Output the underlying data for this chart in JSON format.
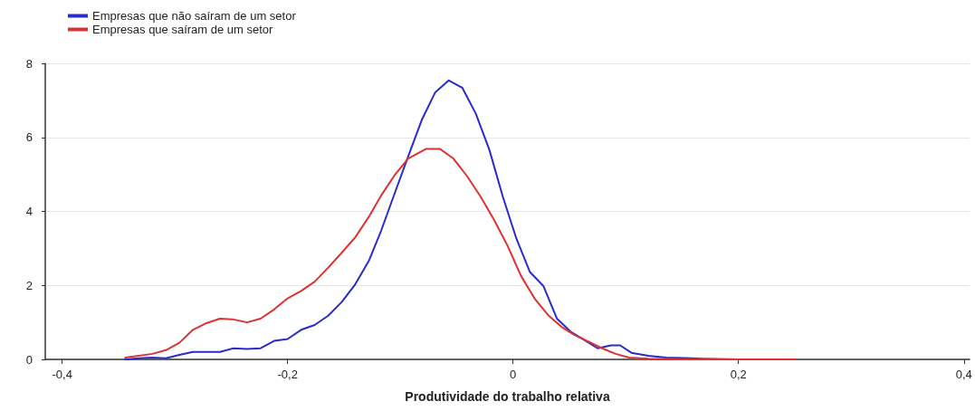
{
  "chart_data": {
    "type": "line",
    "xlabel": "Produtividade do trabalho relativa",
    "xlim": [
      -0.415,
      0.405
    ],
    "xticks": [
      {
        "value": -0.4,
        "label": "-0,4"
      },
      {
        "value": -0.2,
        "label": "-0,2"
      },
      {
        "value": 0,
        "label": "0"
      },
      {
        "value": 0.2,
        "label": "0,2"
      },
      {
        "value": 0.4,
        "label": "0,4"
      }
    ],
    "ylim": [
      0,
      8
    ],
    "yticks": [
      0,
      2,
      4,
      6,
      8
    ],
    "grid": "y",
    "legend": "top left",
    "marker": "none",
    "line_style": "solid",
    "series": [
      {
        "name": "Empresas que não saíram de um setor",
        "color": "#2b2bcc",
        "x": [
          -0.344,
          -0.332,
          -0.32,
          -0.308,
          -0.296,
          -0.284,
          -0.272,
          -0.26,
          -0.248,
          -0.236,
          -0.224,
          -0.212,
          -0.2,
          -0.188,
          -0.176,
          -0.164,
          -0.152,
          -0.14,
          -0.128,
          -0.117,
          -0.105,
          -0.093,
          -0.081,
          -0.069,
          -0.057,
          -0.045,
          -0.033,
          -0.021,
          -0.009,
          0.003,
          0.015,
          0.027,
          0.039,
          0.051,
          0.063,
          0.075,
          0.087,
          0.095,
          0.105,
          0.12,
          0.136,
          0.168,
          0.2,
          0.251
        ],
        "values": [
          0,
          0.03,
          0.05,
          0.03,
          0.12,
          0.2,
          0.2,
          0.2,
          0.3,
          0.28,
          0.3,
          0.5,
          0.55,
          0.8,
          0.93,
          1.18,
          1.55,
          2.03,
          2.66,
          3.48,
          4.49,
          5.49,
          6.47,
          7.22,
          7.54,
          7.34,
          6.64,
          5.66,
          4.39,
          3.26,
          2.36,
          1.98,
          1.1,
          0.75,
          0.53,
          0.3,
          0.38,
          0.38,
          0.18,
          0.1,
          0.05,
          0.02,
          0,
          0
        ]
      },
      {
        "name": "Empresas que saíram de um setor",
        "color": "#dc3232",
        "x": [
          -0.344,
          -0.32,
          -0.308,
          -0.296,
          -0.284,
          -0.272,
          -0.26,
          -0.248,
          -0.236,
          -0.224,
          -0.212,
          -0.2,
          -0.188,
          -0.176,
          -0.164,
          -0.152,
          -0.14,
          -0.128,
          -0.117,
          -0.105,
          -0.093,
          -0.077,
          -0.065,
          -0.053,
          -0.041,
          -0.029,
          -0.017,
          -0.005,
          0.007,
          0.019,
          0.031,
          0.043,
          0.055,
          0.067,
          0.079,
          0.091,
          0.103,
          0.12,
          0.152,
          0.251
        ],
        "values": [
          0.05,
          0.15,
          0.25,
          0.45,
          0.8,
          0.98,
          1.1,
          1.08,
          1,
          1.1,
          1.35,
          1.65,
          1.85,
          2.1,
          2.48,
          2.88,
          3.3,
          3.85,
          4.43,
          4.98,
          5.43,
          5.69,
          5.69,
          5.43,
          4.96,
          4.41,
          3.78,
          3.08,
          2.26,
          1.65,
          1.2,
          0.88,
          0.65,
          0.48,
          0.3,
          0.15,
          0.05,
          0.02,
          0,
          0
        ]
      }
    ]
  }
}
